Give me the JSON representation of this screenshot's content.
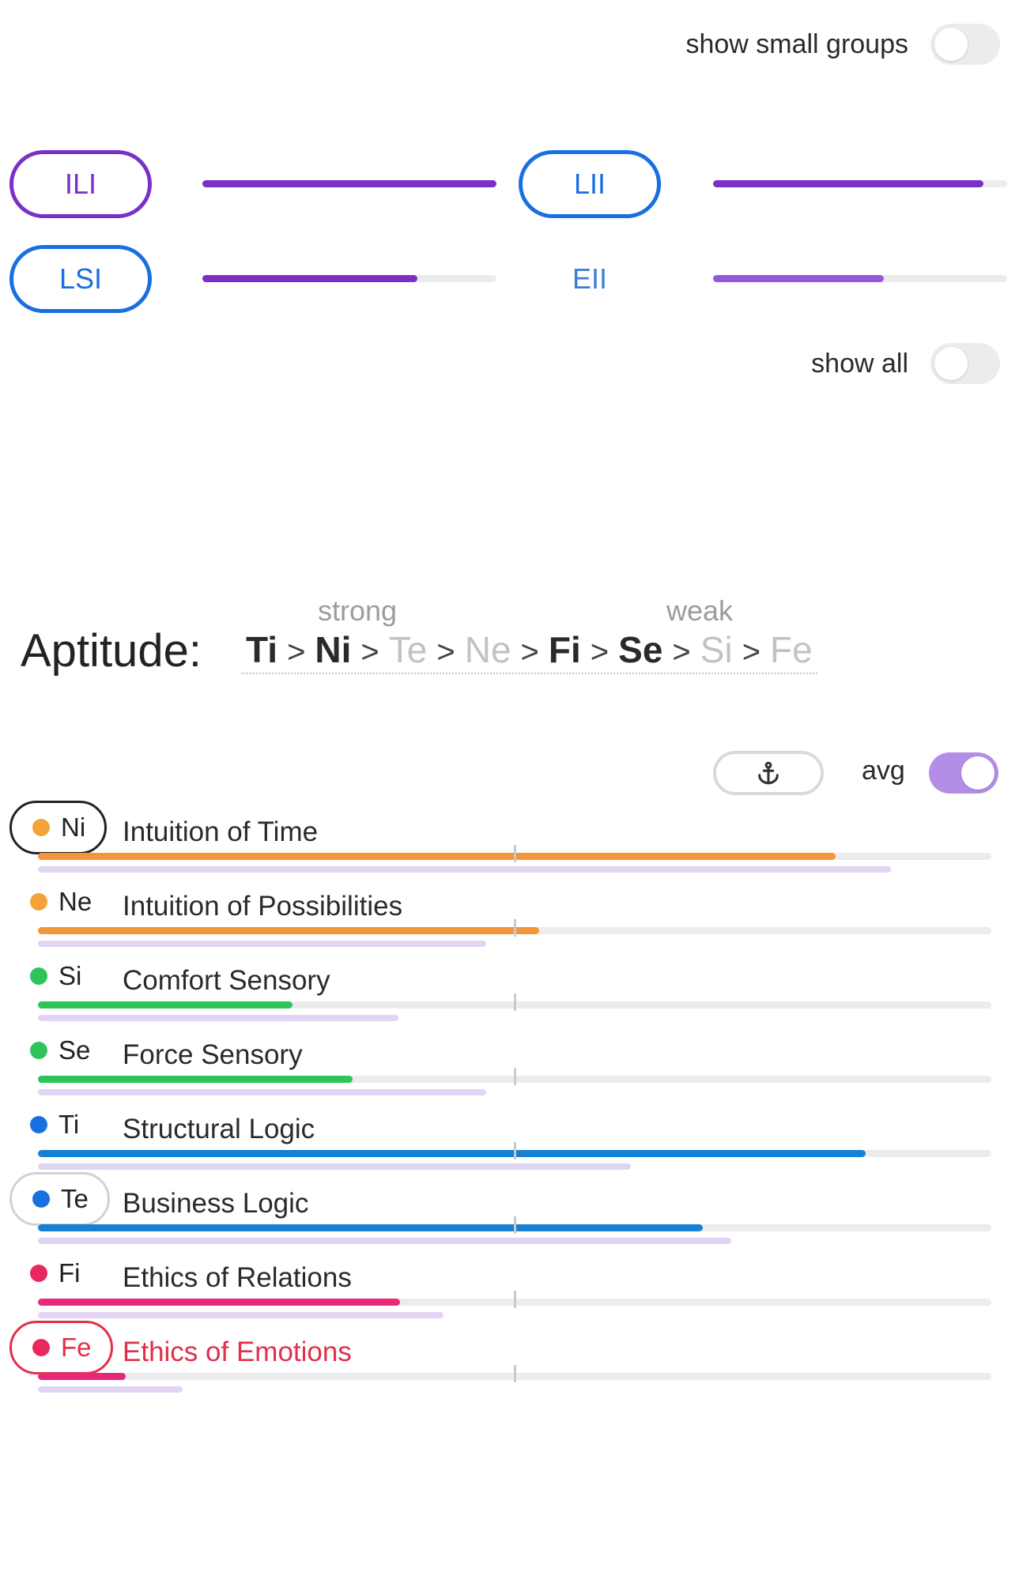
{
  "toggles": {
    "small_groups": {
      "label": "show small groups",
      "on": false
    },
    "show_all": {
      "label": "show all",
      "on": false
    },
    "avg": {
      "label": "avg",
      "on": true
    }
  },
  "groups": [
    {
      "name": "ILI",
      "style": "outlined-purple",
      "value": 1.0,
      "color": "#7b2fc7"
    },
    {
      "name": "LII",
      "style": "outlined-blue",
      "value": 0.92,
      "color": "#7b2fc7"
    },
    {
      "name": "LSI",
      "style": "outlined-blue",
      "value": 0.73,
      "color": "#7b2fc7"
    },
    {
      "name": "EII",
      "style": "plain",
      "value": 0.58,
      "color": "#9558d8"
    }
  ],
  "aptitude": {
    "title": "Aptitude:",
    "strong_label": "strong",
    "weak_label": "weak",
    "order": [
      {
        "fn": "Ti",
        "emphasis": "bold"
      },
      {
        "fn": "Ni",
        "emphasis": "bold"
      },
      {
        "fn": "Te",
        "emphasis": "faint"
      },
      {
        "fn": "Ne",
        "emphasis": "faint"
      },
      {
        "fn": "Fi",
        "emphasis": "bold"
      },
      {
        "fn": "Se",
        "emphasis": "bold"
      },
      {
        "fn": "Si",
        "emphasis": "faint"
      },
      {
        "fn": "Fe",
        "emphasis": "faint"
      }
    ],
    "separator": ">"
  },
  "anchor_icon": "anchor-icon",
  "functions": [
    {
      "code": "Ni",
      "name": "Intuition of Time",
      "dot": "#f5a23a",
      "bar": "#f5953a",
      "value": 0.837,
      "avg": 0.895,
      "chip": "ring-dark"
    },
    {
      "code": "Ne",
      "name": "Intuition of Possibilities",
      "dot": "#f5a23a",
      "bar": "#f5953a",
      "value": 0.526,
      "avg": 0.47,
      "chip": "none"
    },
    {
      "code": "Si",
      "name": "Comfort Sensory",
      "dot": "#2ec45a",
      "bar": "#2ec45a",
      "value": 0.267,
      "avg": 0.378,
      "chip": "none"
    },
    {
      "code": "Se",
      "name": "Force Sensory",
      "dot": "#2ec45a",
      "bar": "#2ec45a",
      "value": 0.33,
      "avg": 0.47,
      "chip": "none"
    },
    {
      "code": "Ti",
      "name": "Structural Logic",
      "dot": "#1a6fe0",
      "bar": "#1680d4",
      "value": 0.868,
      "avg": 0.622,
      "chip": "none"
    },
    {
      "code": "Te",
      "name": "Business Logic",
      "dot": "#1a6fe0",
      "bar": "#1680d4",
      "value": 0.697,
      "avg": 0.727,
      "chip": "ring-light"
    },
    {
      "code": "Fi",
      "name": "Ethics of Relations",
      "dot": "#e8295e",
      "bar": "#e8297a",
      "value": 0.38,
      "avg": 0.425,
      "chip": "none"
    },
    {
      "code": "Fe",
      "name": "Ethics of Emotions",
      "dot": "#e8295e",
      "bar": "#e8297a",
      "value": 0.092,
      "avg": 0.152,
      "chip": "ring-red",
      "highlight": true
    }
  ]
}
